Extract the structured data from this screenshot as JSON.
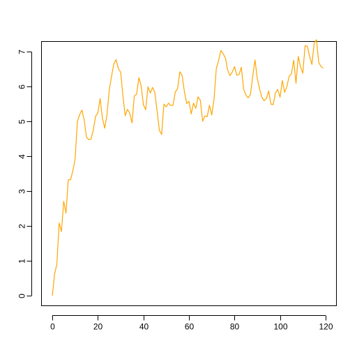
{
  "chart_data": {
    "type": "line",
    "title": "",
    "xlabel": "",
    "ylabel": "",
    "xlim": [
      -4.76,
      124.76
    ],
    "ylim": [
      -0.29,
      7.3
    ],
    "x_ticks": [
      0,
      20,
      40,
      60,
      80,
      100,
      120
    ],
    "y_ticks": [
      0,
      1,
      2,
      3,
      4,
      5,
      6,
      7
    ],
    "grid": false,
    "legend": "none",
    "series": [
      {
        "color": "#FFA500",
        "x": [
          0,
          1,
          2,
          3,
          4,
          5,
          6,
          7,
          8,
          9,
          10,
          11,
          12,
          13,
          14,
          15,
          16,
          17,
          18,
          19,
          20,
          21,
          22,
          23,
          24,
          25,
          26,
          27,
          28,
          29,
          30,
          31,
          32,
          33,
          34,
          35,
          36,
          37,
          38,
          39,
          40,
          41,
          42,
          43,
          44,
          45,
          46,
          47,
          48,
          49,
          50,
          51,
          52,
          53,
          54,
          55,
          56,
          57,
          58,
          59,
          60,
          61,
          62,
          63,
          64,
          65,
          66,
          67,
          68,
          69,
          70,
          71,
          72,
          73,
          74,
          75,
          76,
          77,
          78,
          79,
          80,
          81,
          82,
          83,
          84,
          85,
          86,
          87,
          88,
          89,
          90,
          91,
          92,
          93,
          94,
          95,
          96,
          97,
          98,
          99,
          100,
          101,
          102,
          103,
          104,
          105,
          106,
          107,
          108,
          109,
          110,
          111,
          112,
          113,
          114,
          115,
          116,
          117,
          118,
          119
        ],
        "y": [
          0.0,
          0.62,
          0.91,
          2.09,
          1.84,
          2.71,
          2.37,
          3.33,
          3.33,
          3.58,
          3.92,
          5.0,
          5.2,
          5.33,
          5.04,
          4.55,
          4.48,
          4.5,
          4.76,
          5.15,
          5.25,
          5.66,
          5.1,
          4.81,
          5.2,
          5.9,
          6.3,
          6.66,
          6.78,
          6.52,
          6.42,
          5.74,
          5.17,
          5.35,
          5.24,
          4.96,
          5.74,
          5.78,
          6.26,
          6.03,
          5.48,
          5.34,
          6.0,
          5.82,
          5.98,
          5.84,
          5.31,
          4.75,
          4.63,
          5.5,
          5.42,
          5.53,
          5.46,
          5.47,
          5.85,
          5.94,
          6.43,
          6.32,
          5.86,
          5.52,
          5.58,
          5.22,
          5.53,
          5.38,
          5.71,
          5.61,
          5.01,
          5.16,
          5.14,
          5.47,
          5.19,
          5.64,
          6.52,
          6.75,
          7.04,
          6.95,
          6.83,
          6.48,
          6.32,
          6.42,
          6.58,
          6.33,
          6.35,
          6.56,
          5.93,
          5.76,
          5.68,
          5.78,
          6.3,
          6.77,
          6.24,
          5.94,
          5.7,
          5.6,
          5.66,
          5.88,
          5.5,
          5.49,
          5.83,
          5.92,
          5.7,
          6.18,
          5.84,
          6.01,
          6.3,
          6.37,
          6.76,
          6.1,
          6.87,
          6.57,
          6.39,
          7.18,
          7.16,
          6.87,
          6.64,
          7.26,
          7.35,
          6.69,
          6.58,
          6.53
        ]
      }
    ]
  }
}
